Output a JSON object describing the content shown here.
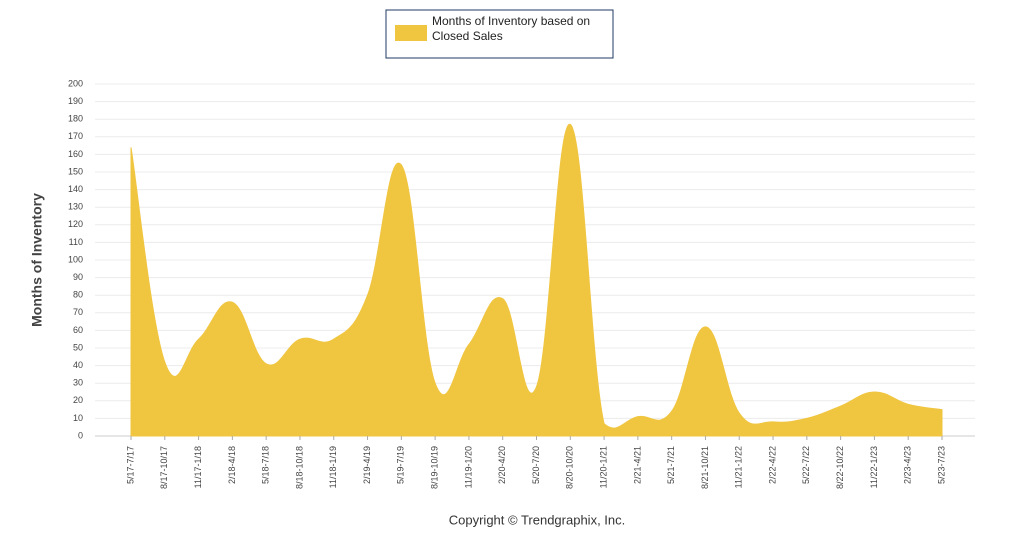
{
  "chart_data": {
    "type": "area",
    "legend_label": "Months of Inventory based on Closed Sales",
    "y_label": "Months of Inventory",
    "footer": "Copyright © Trendgraphix, Inc.",
    "color": "#f0c540",
    "categories": [
      "5/17-7/17",
      "8/17-10/17",
      "11/17-1/18",
      "2/18-4/18",
      "5/18-7/18",
      "8/18-10/18",
      "11/18-1/19",
      "2/19-4/19",
      "5/19-7/19",
      "8/19-10/19",
      "11/19-1/20",
      "2/20-4/20",
      "5/20-7/20",
      "8/20-10/20",
      "11/20-1/21",
      "2/21-4/21",
      "5/21-7/21",
      "8/21-10/21",
      "11/21-1/22",
      "2/22-4/22",
      "5/22-7/22",
      "8/22-10/22",
      "11/22-1/23",
      "2/23-4/23",
      "5/23-7/23"
    ],
    "values": [
      164,
      42,
      55,
      76,
      41,
      55,
      55,
      80,
      154,
      30,
      52,
      78,
      28,
      177,
      7,
      11,
      14,
      62,
      13,
      8,
      10,
      17,
      25,
      18,
      15
    ],
    "ylim": [
      0,
      200
    ],
    "yticks": [
      0,
      10,
      20,
      30,
      40,
      50,
      60,
      70,
      80,
      90,
      100,
      110,
      120,
      130,
      140,
      150,
      160,
      170,
      180,
      190,
      200
    ],
    "grid": true
  }
}
